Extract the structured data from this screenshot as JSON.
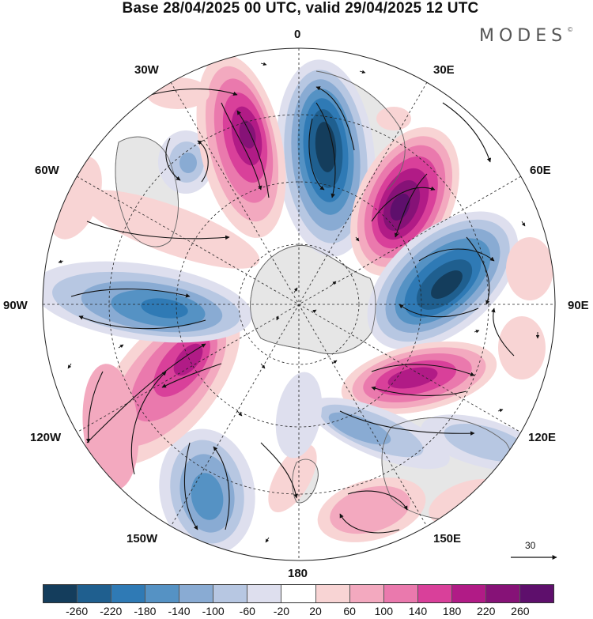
{
  "title": "Base 28/04/2025 00 UTC, valid 29/04/2025 12 UTC",
  "logo": "MODES",
  "logo_mark": "©",
  "projection": "south-polar-stereographic",
  "longitude_labels": {
    "top": "0",
    "top_right": "30E",
    "right_upper": "60E",
    "right": "90E",
    "right_lower": "120E",
    "bottom_right": "150E",
    "bottom": "180",
    "bottom_left": "150W",
    "left_lower": "120W",
    "left": "90W",
    "left_upper": "60W",
    "top_left": "30W"
  },
  "reference_vector": {
    "value": "30"
  },
  "colorbar": {
    "labels": [
      "-260",
      "-220",
      "-180",
      "-140",
      "-100",
      "-60",
      "-20",
      "20",
      "60",
      "100",
      "140",
      "180",
      "220",
      "260"
    ],
    "colors": [
      "#143d5c",
      "#1f5f8f",
      "#2f7ab5",
      "#5592c4",
      "#89abd3",
      "#b7c7e2",
      "#dedfee",
      "#ffffff",
      "#f8d4d4",
      "#f3a9bf",
      "#ea79ad",
      "#d9409a",
      "#b11b86",
      "#861277",
      "#5e0f6c"
    ]
  },
  "colors": {
    "ocean_background": "#ffffff",
    "land_fill": "#e6e6e6",
    "coastline": "#666666"
  }
}
